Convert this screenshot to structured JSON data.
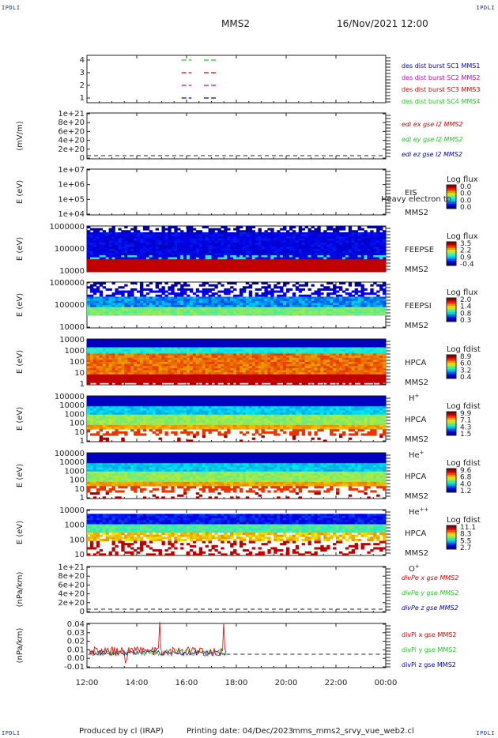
{
  "corners": {
    "tl": "IPDLI",
    "tr": "IPDLI",
    "bl": "IPDLI",
    "br": "IPDLI"
  },
  "header": {
    "title": "MMS2",
    "datetime": "16/Nov/2021 12:00"
  },
  "footer": {
    "producer": "Produced by cl (IRAP)",
    "printing": "Printing date: 04/Dec/2023",
    "script": "mms_mms2_srvy_vue_web2.cl"
  },
  "colors": {
    "red": "#dd0000",
    "green": "#22cc22",
    "blue": "#0000cc",
    "magenta": "#cc00cc",
    "cyan_bar": "#00a0c0"
  },
  "time_axis": {
    "ticks": [
      "12:00",
      "14:00",
      "16:00",
      "18:00",
      "20:00",
      "22:00",
      "00:00"
    ],
    "start_hours": 12,
    "end_hours": 24
  },
  "chart_data": [
    {
      "id": "burst",
      "type": "line",
      "ylabels": [
        "4",
        "3",
        "2",
        "1"
      ],
      "legend": [
        {
          "text": "des dist burst SC1 MMS1",
          "color": "#0000cc"
        },
        {
          "text": "des dist burst SC2 MMS2",
          "color": "#cc00cc"
        },
        {
          "text": "des dist burst SC3 MMS3",
          "color": "#dd0000"
        },
        {
          "text": "des dist burst SC4 MMS4",
          "color": "#22cc22"
        }
      ],
      "intervals": [
        {
          "start": 15.8,
          "end": 16.2
        },
        {
          "start": 16.7,
          "end": 17.2
        }
      ]
    },
    {
      "id": "edi",
      "type": "line",
      "ylabel": "(mV/m)",
      "ylabels": [
        "1e+21",
        "8e+20",
        "6e+20",
        "4e+20",
        "2e+20",
        "0"
      ],
      "legend": [
        {
          "text": "edi ex gse l2 MMS2",
          "color": "#dd0000"
        },
        {
          "text": "edi ey gse l2 MMS2",
          "color": "#22cc22"
        },
        {
          "text": "edi ez gse l2 MMS2",
          "color": "#0000cc"
        }
      ]
    },
    {
      "id": "eis",
      "type": "heatmap",
      "ylabel": "E (eV)",
      "ylabels": [
        "1e+07",
        "1e+06",
        "1e+05",
        "1e+04"
      ],
      "name": "EIS",
      "name2": "MMS2",
      "overlay": "Heavy electron to",
      "cbar_title": "Log flux",
      "cbar_ticks": [
        "0.0",
        "0.0",
        "0.0",
        "0.0"
      ]
    },
    {
      "id": "feepse",
      "type": "heatmap",
      "ylabel": "E (eV)",
      "ylabels": [
        "1000000",
        "100000",
        "10000"
      ],
      "name": "FEEPSE",
      "name2": "MMS2",
      "cbar_title": "Log flux",
      "cbar_ticks": [
        "3.5",
        "2.2",
        "0.9",
        "-0.4"
      ]
    },
    {
      "id": "feepsi",
      "type": "heatmap",
      "ylabel": "E (eV)",
      "ylabels": [
        "1000000",
        "100000",
        "10000"
      ],
      "name": "FEEPSI",
      "name2": "MMS2",
      "cbar_title": "Log flux",
      "cbar_ticks": [
        "2.0",
        "1.4",
        "0.8",
        "0.3"
      ]
    },
    {
      "id": "hpca_h",
      "type": "heatmap",
      "ylabel": "E (eV)",
      "ylabels": [
        "10000",
        "1000",
        "100",
        "10",
        "1"
      ],
      "name": "HPCA",
      "name2": "MMS2",
      "species": "H",
      "sup": "+",
      "cbar_title": "Log fdist",
      "cbar_ticks": [
        "8.9",
        "6.0",
        "3.2",
        "0.4"
      ]
    },
    {
      "id": "hpca_he",
      "type": "heatmap",
      "ylabel": "E (eV)",
      "ylabels": [
        "100000",
        "10000",
        "1000",
        "100",
        "10",
        "1"
      ],
      "name": "HPCA",
      "name2": "MMS2",
      "species": "He",
      "sup": "+",
      "cbar_title": "Log fdist",
      "cbar_ticks": [
        "9.9",
        "7.1",
        "4.3",
        "1.5"
      ]
    },
    {
      "id": "hpca_he2",
      "type": "heatmap",
      "ylabel": "E (eV)",
      "ylabels": [
        "100000",
        "10000",
        "1000",
        "100",
        "10",
        "1"
      ],
      "name": "HPCA",
      "name2": "MMS2",
      "species": "He",
      "sup": "++",
      "cbar_title": "Log fdist",
      "cbar_ticks": [
        "9.6",
        "6.8",
        "4.0",
        "1.2"
      ]
    },
    {
      "id": "hpca_o",
      "type": "heatmap",
      "ylabel": "E (eV)",
      "ylabels": [
        "10000",
        "1000",
        "100",
        "10"
      ],
      "name": "HPCA",
      "name2": "MMS2",
      "species": "O",
      "sup": "+",
      "cbar_title": "Log fdist",
      "cbar_ticks": [
        "11.1",
        "8.3",
        "5.5",
        "2.7"
      ]
    },
    {
      "id": "divpe",
      "type": "line",
      "ylabel": "(nPa/km)",
      "ylabels": [
        "1e+21",
        "8e+20",
        "6e+20",
        "4e+20",
        "2e+20",
        "0"
      ],
      "legend": [
        {
          "text": "divPe x gse MMS2",
          "color": "#dd0000"
        },
        {
          "text": "divPe y gse MMS2",
          "color": "#22cc22"
        },
        {
          "text": "divPe z gse MMS2",
          "color": "#0000cc"
        }
      ]
    },
    {
      "id": "divpi",
      "type": "line",
      "ylabel": "(nPa/km)",
      "ylabels": [
        "0.04",
        "0.03",
        "0.02",
        "0.01",
        "0.00",
        "-0.01"
      ],
      "legend": [
        {
          "text": "divPi x gse MMS2",
          "color": "#dd0000"
        },
        {
          "text": "divPi y gse MMS2",
          "color": "#22cc22"
        },
        {
          "text": "divPi z gse MMS2",
          "color": "#0000cc"
        }
      ],
      "data_end_hours": 17.6
    }
  ]
}
